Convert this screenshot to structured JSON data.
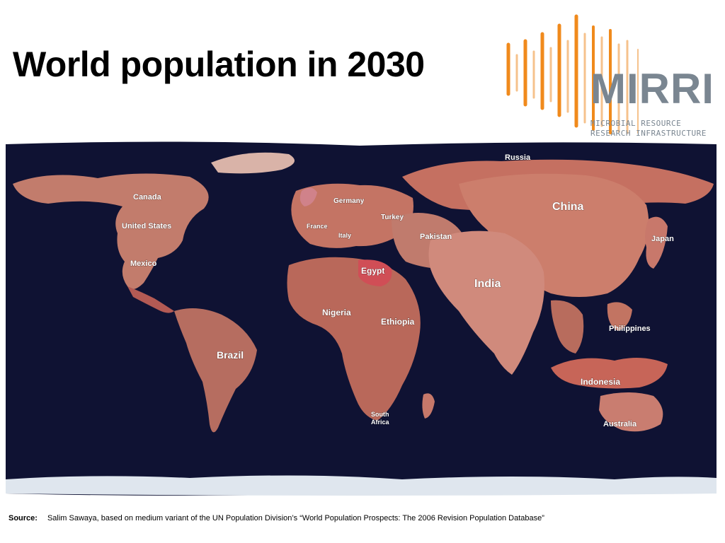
{
  "title": "World population in 2030",
  "logo": {
    "name": "MIRRI",
    "subtitle_line1": "MICROBIAL RESOURCE",
    "subtitle_line2": "RESEARCH INFRASTRUCTURE",
    "bar_colors": [
      "#f08a1c",
      "#f6c28c"
    ]
  },
  "map": {
    "ocean_color": "#0f1233",
    "land_color": "#c97a6c",
    "labels": {
      "russia": "Russia",
      "canada": "Canada",
      "germany": "Germany",
      "turkey": "Turkey",
      "united_states": "United States",
      "france": "France",
      "italy": "Italy",
      "pakistan": "Pakistan",
      "china": "China",
      "japan": "Japan",
      "mexico": "Mexico",
      "egypt": "Egypt",
      "india": "India",
      "nigeria": "Nigeria",
      "ethiopia": "Ethiopia",
      "philippines": "Philippines",
      "brazil": "Brazil",
      "indonesia": "Indonesia",
      "south_africa_1": "South",
      "south_africa_2": "Africa",
      "australia": "Australia"
    }
  },
  "source": {
    "label": "Source:",
    "text": "Salim Sawaya, based on medium variant of the UN Population Division’s “World Population Prospects: The 2006 Revision Population Database”"
  }
}
